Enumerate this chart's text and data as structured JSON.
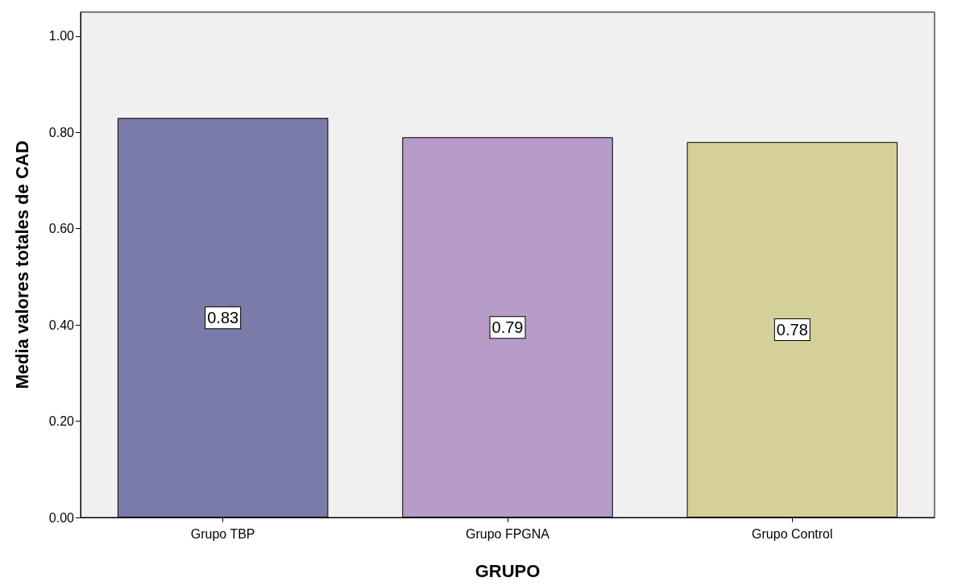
{
  "chart_data": {
    "type": "bar",
    "xlabel": "GRUPO",
    "ylabel": "Media valores totales de CAD",
    "categories": [
      "Grupo TBP",
      "Grupo FPGNA",
      "Grupo Control"
    ],
    "values": [
      0.83,
      0.79,
      0.78
    ],
    "colors": [
      "#7a7ba8",
      "#b79bc9",
      "#d5d09a"
    ],
    "ylim": [
      0,
      1.05
    ],
    "yticks": [
      {
        "value": 0,
        "label": "0.00"
      },
      {
        "value": 0.2,
        "label": "0.20"
      },
      {
        "value": 0.4,
        "label": "0.40"
      },
      {
        "value": 0.6,
        "label": "0.60"
      },
      {
        "value": 0.8,
        "label": "0.80"
      },
      {
        "value": 1,
        "label": "1.00"
      }
    ],
    "data_labels": true,
    "grid": false
  }
}
